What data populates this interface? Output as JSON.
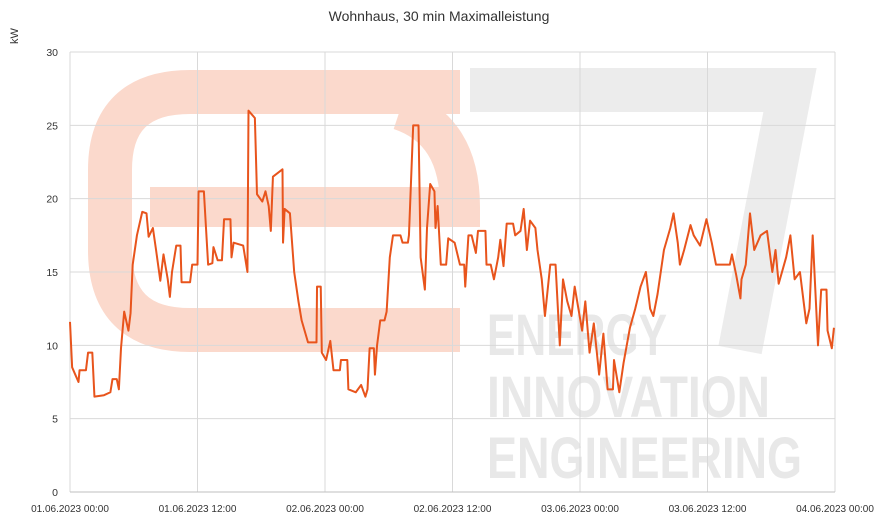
{
  "chart_data": {
    "type": "line",
    "title": "Wohnhaus, 30 min Maximalleistung",
    "y_label": "kW",
    "watermark": [
      "ENERGY",
      "INNOVATION",
      "ENGINEERING"
    ],
    "xlim": [
      0,
      72
    ],
    "xticks": [
      {
        "value": 0,
        "label": "01.06.2023 00:00"
      },
      {
        "value": 12,
        "label": "01.06.2023 12:00"
      },
      {
        "value": 24,
        "label": "02.06.2023 00:00"
      },
      {
        "value": 36,
        "label": "02.06.2023 12:00"
      },
      {
        "value": 48,
        "label": "03.06.2023 00:00"
      },
      {
        "value": 60,
        "label": "03.06.2023 12:00"
      },
      {
        "value": 72,
        "label": "04.06.2023 00:00"
      }
    ],
    "ylim": [
      0,
      30
    ],
    "yticks": [
      0,
      5,
      10,
      15,
      20,
      25,
      30
    ],
    "grid": true,
    "x": [
      0.0,
      0.2,
      0.5,
      0.8,
      0.9,
      1.5,
      1.7,
      2.1,
      2.3,
      3.2,
      3.8,
      4.0,
      4.4,
      4.6,
      4.8,
      5.1,
      5.5,
      5.7,
      5.9,
      6.3,
      6.8,
      7.2,
      7.4,
      7.8,
      8.1,
      8.5,
      8.8,
      9.2,
      9.4,
      9.6,
      10.0,
      10.4,
      10.5,
      11.3,
      11.5,
      12.0,
      12.1,
      12.6,
      12.8,
      13.0,
      13.4,
      13.5,
      13.9,
      14.3,
      14.5,
      15.1,
      15.2,
      15.4,
      16.3,
      16.7,
      16.8,
      17.4,
      17.6,
      18.1,
      18.4,
      18.7,
      18.9,
      19.1,
      20.0,
      20.05,
      20.2,
      20.7,
      20.9,
      21.1,
      21.5,
      21.8,
      22.4,
      23.2,
      23.25,
      23.6,
      23.7,
      24.1,
      24.5,
      24.8,
      25.4,
      25.5,
      26.1,
      26.2,
      26.9,
      27.4,
      27.8,
      28.0,
      28.2,
      28.6,
      28.7,
      28.9,
      29.2,
      29.6,
      29.8,
      30.1,
      30.4,
      31.1,
      31.3,
      31.8,
      31.9,
      32.3,
      32.8,
      33.0,
      33.4,
      33.6,
      33.9,
      34.3,
      34.4,
      34.6,
      34.9,
      35.4,
      35.6,
      36.2,
      36.7,
      37.1,
      37.2,
      37.5,
      37.8,
      38.2,
      38.4,
      39.1,
      39.2,
      39.6,
      39.9,
      40.3,
      40.5,
      40.8,
      41.1,
      41.7,
      41.9,
      42.4,
      42.7,
      43.0,
      43.3,
      43.8,
      44.0,
      44.4,
      44.7,
      45.2,
      45.7,
      46.1,
      46.4,
      46.8,
      47.2,
      47.5,
      48.2,
      48.5,
      48.9,
      49.3,
      49.8,
      50.2,
      50.6,
      51.1,
      51.2,
      51.7,
      52.1,
      52.7,
      53.2,
      53.7,
      54.2,
      54.6,
      54.9,
      55.3,
      55.9,
      56.5,
      56.8,
      57.2,
      57.4,
      57.8,
      58.4,
      58.7,
      59.3,
      59.9,
      60.4,
      60.8,
      62.1,
      62.3,
      62.7,
      63.1,
      63.2,
      63.6,
      64.0,
      64.4,
      65.0,
      65.6,
      66.1,
      66.4,
      66.7,
      67.4,
      67.8,
      68.2,
      68.7,
      69.3,
      69.6,
      69.9,
      70.4,
      70.7,
      71.2,
      71.3,
      71.7,
      71.9
    ],
    "series": [
      {
        "name": "Maximalleistung",
        "color": "#e8541c",
        "values": [
          11.6,
          8.5,
          8.0,
          7.5,
          8.3,
          8.3,
          9.5,
          9.5,
          6.5,
          6.6,
          6.8,
          7.7,
          7.7,
          7.0,
          9.8,
          12.3,
          11.0,
          12.2,
          15.5,
          17.5,
          19.1,
          19.0,
          17.4,
          18.0,
          16.5,
          14.4,
          16.2,
          14.5,
          13.3,
          15.0,
          16.8,
          16.8,
          14.3,
          14.3,
          15.5,
          15.5,
          20.5,
          20.5,
          18.0,
          15.5,
          15.6,
          16.7,
          15.8,
          15.8,
          18.6,
          18.6,
          16.0,
          17.0,
          16.8,
          15.0,
          26.0,
          25.5,
          20.3,
          19.8,
          20.5,
          19.5,
          17.8,
          21.5,
          22.0,
          17.0,
          19.3,
          19.0,
          17.0,
          15.0,
          13.0,
          11.7,
          10.2,
          10.2,
          14.0,
          14.0,
          9.5,
          9.0,
          10.3,
          8.3,
          8.3,
          9.0,
          9.0,
          7.0,
          6.8,
          7.3,
          6.5,
          7.0,
          9.8,
          9.8,
          8.0,
          10.0,
          11.7,
          11.7,
          12.3,
          16.0,
          17.5,
          17.5,
          17.0,
          17.0,
          17.5,
          25.0,
          25.0,
          16.0,
          13.8,
          18.0,
          21.0,
          20.5,
          18.0,
          19.5,
          15.5,
          15.5,
          17.3,
          17.0,
          15.5,
          15.5,
          14.0,
          17.5,
          17.5,
          16.3,
          17.8,
          17.8,
          15.5,
          15.5,
          14.5,
          16.0,
          17.2,
          15.4,
          18.3,
          18.3,
          17.5,
          17.8,
          19.3,
          16.5,
          18.5,
          18.0,
          16.5,
          14.5,
          12.0,
          15.5,
          15.5,
          10.0,
          14.5,
          13.0,
          12.0,
          14.0,
          11.0,
          13.0,
          9.5,
          11.5,
          8.0,
          10.8,
          7.0,
          7.0,
          9.0,
          6.8,
          8.8,
          11.2,
          12.5,
          14.0,
          15.0,
          12.5,
          12.0,
          13.5,
          16.5,
          18.0,
          19.0,
          17.0,
          15.5,
          16.5,
          18.2,
          17.5,
          16.8,
          18.6,
          17.0,
          15.5,
          15.5,
          16.2,
          14.8,
          13.2,
          14.5,
          15.5,
          19.0,
          16.5,
          17.5,
          17.8,
          15.0,
          16.5,
          14.2,
          16.0,
          17.5,
          14.5,
          15.0,
          11.5,
          12.5,
          17.5,
          10.0,
          13.8,
          13.8,
          11.0,
          9.8,
          11.2
        ]
      }
    ]
  }
}
